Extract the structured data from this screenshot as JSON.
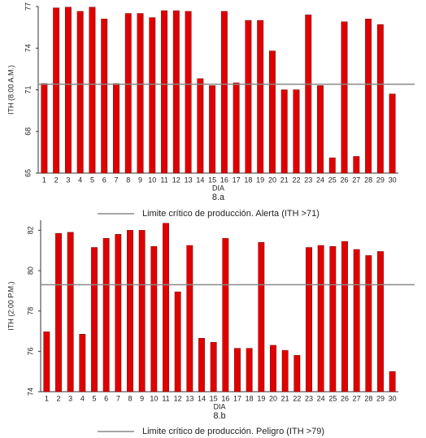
{
  "chart_data": [
    {
      "type": "bar",
      "y_label": "ITH (8:00 A.M.)",
      "x_label": "DIA",
      "caption": "8.a",
      "categories": [
        "1",
        "2",
        "3",
        "4",
        "5",
        "6",
        "7",
        "8",
        "9",
        "10",
        "11",
        "12",
        "13",
        "14",
        "15",
        "16",
        "17",
        "18",
        "19",
        "20",
        "21",
        "22",
        "23",
        "24",
        "25",
        "26",
        "27",
        "28",
        "29",
        "30"
      ],
      "values": [
        71.45,
        76.9,
        76.95,
        76.65,
        76.95,
        76.1,
        71.45,
        76.5,
        76.5,
        76.2,
        76.7,
        76.7,
        76.65,
        71.8,
        71.3,
        76.65,
        71.5,
        76.0,
        76.0,
        73.8,
        71.0,
        71.0,
        76.4,
        71.3,
        66.1,
        75.9,
        66.2,
        76.1,
        75.7,
        70.7
      ],
      "color": "#e00000",
      "ylim": [
        65,
        77
      ],
      "yticks": [
        65,
        68,
        71,
        74,
        77
      ],
      "reference_line": {
        "value": 71.4,
        "color": "#888888",
        "label": "Limite crítico de producción. Alerta (ITH >71)"
      }
    },
    {
      "type": "bar",
      "y_label": "ITH (2:00 P.M.)",
      "x_label": "DIA",
      "caption": "8.b",
      "categories": [
        "1",
        "2",
        "3",
        "4",
        "5",
        "6",
        "7",
        "8",
        "9",
        "10",
        "11",
        "12",
        "13",
        "14",
        "15",
        "16",
        "17",
        "18",
        "19",
        "20",
        "21",
        "22",
        "23",
        "24",
        "25",
        "26",
        "27",
        "28",
        "29",
        "30"
      ],
      "values": [
        76.97,
        81.85,
        81.9,
        76.85,
        81.15,
        81.6,
        81.8,
        82.0,
        82.0,
        81.2,
        82.35,
        78.95,
        81.25,
        76.65,
        76.45,
        81.6,
        76.15,
        76.15,
        81.4,
        76.3,
        76.05,
        75.8,
        81.15,
        81.25,
        81.2,
        81.45,
        81.05,
        80.75,
        80.95,
        75.0
      ],
      "color": "#e00000",
      "ylim": [
        74,
        82.5
      ],
      "yticks": [
        74,
        76,
        78,
        80,
        82
      ],
      "reference_line": {
        "value": 79.3,
        "color": "#888888",
        "label": "Limite crítico de producción. Peligro (ITH >79)"
      }
    }
  ]
}
